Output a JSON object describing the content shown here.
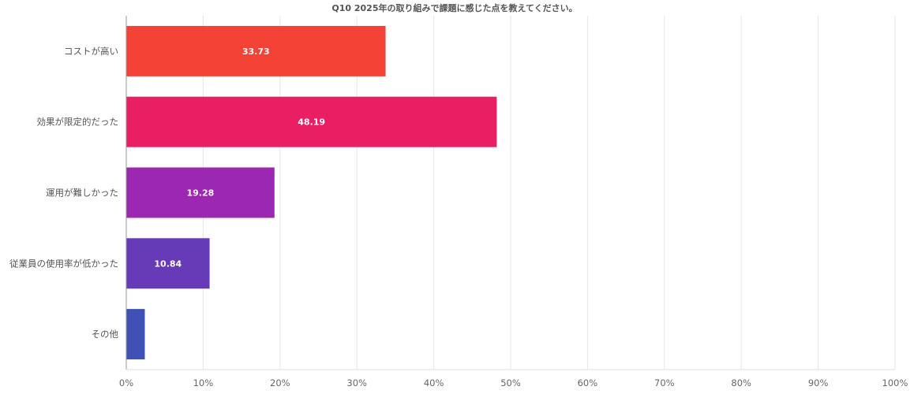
{
  "chart_data": {
    "type": "bar",
    "orientation": "horizontal",
    "title": "Q10 2025年の取り組みで課題に感じた点を教えてください。",
    "categories": [
      "コストが高い",
      "効果が限定的だった",
      "運用が難しかった",
      "従業員の使用率が低かった",
      "その他"
    ],
    "values": [
      33.73,
      48.19,
      19.28,
      10.84,
      2.41
    ],
    "value_labels": [
      "33.73",
      "48.19",
      "19.28",
      "10.84",
      ""
    ],
    "colors": [
      "#f44336",
      "#e91e63",
      "#9c27b0",
      "#673ab7",
      "#3f51b5"
    ],
    "xlim": [
      0,
      100
    ],
    "x_ticks": [
      "0%",
      "10%",
      "20%",
      "30%",
      "40%",
      "50%",
      "60%",
      "70%",
      "80%",
      "90%",
      "100%"
    ],
    "grid": true
  }
}
